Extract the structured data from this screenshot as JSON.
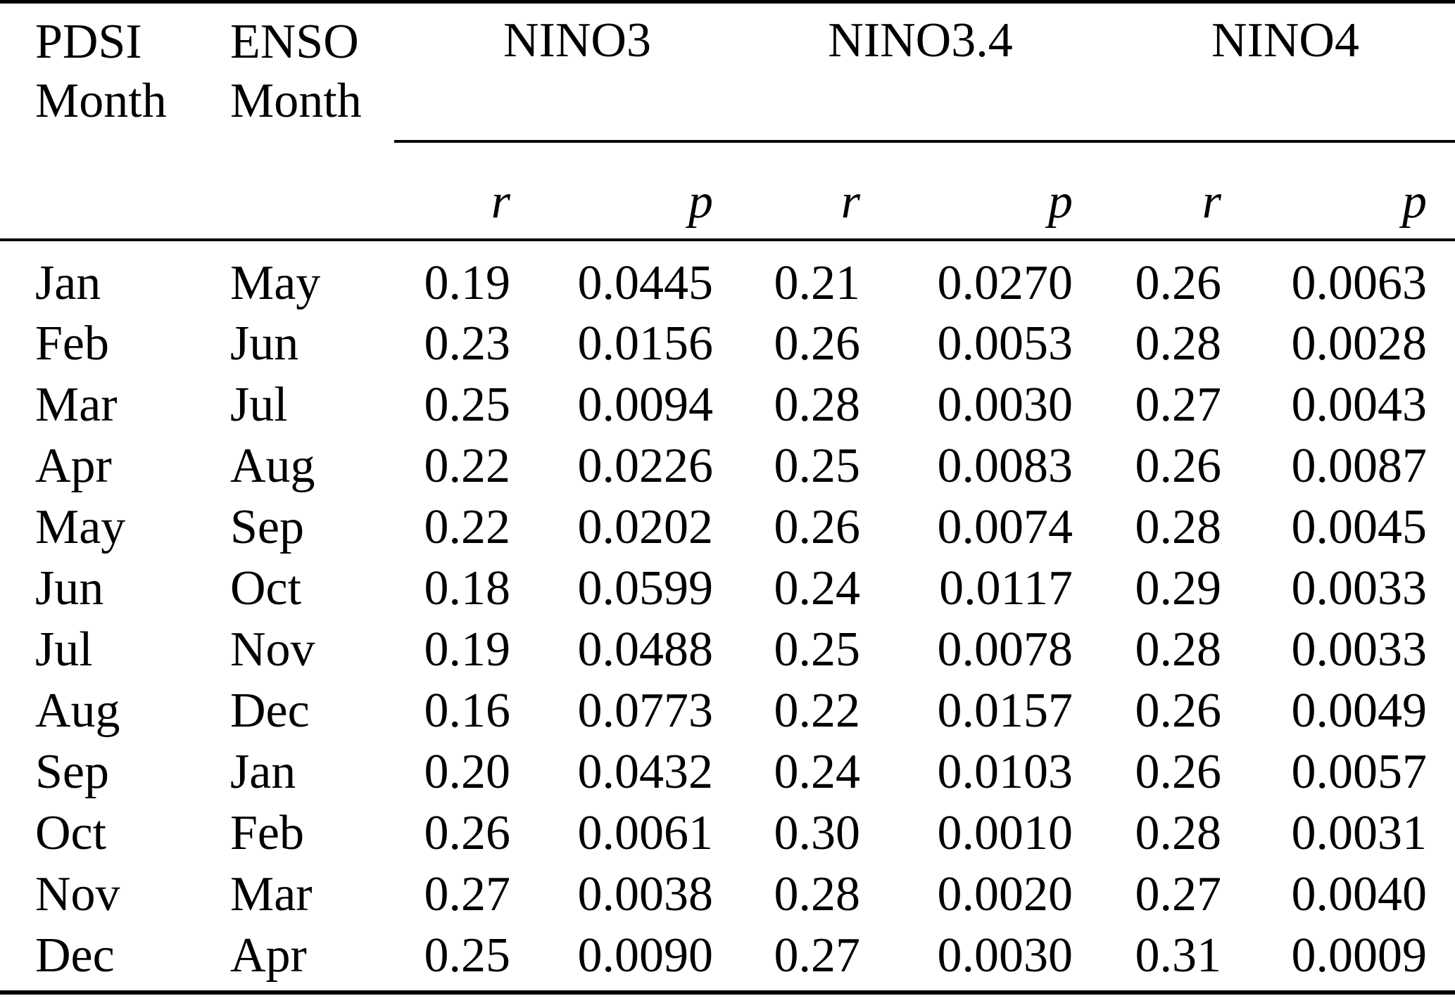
{
  "colors": {
    "background": "#ffffff",
    "text": "#000000",
    "rule": "#000000"
  },
  "table": {
    "column_headers": {
      "pdsi_month": "PDSI\nMonth",
      "enso_month": "ENSO\nMonth"
    },
    "groups": [
      {
        "name": "NINO3",
        "r_label": "r",
        "p_label": "p"
      },
      {
        "name": "NINO3.4",
        "r_label": "r",
        "p_label": "p"
      },
      {
        "name": "NINO4",
        "r_label": "r",
        "p_label": "p"
      }
    ],
    "rows": [
      {
        "pdsi": "Jan",
        "enso": "May",
        "nino3_r": "0.19",
        "nino3_p": "0.0445",
        "nino34_r": "0.21",
        "nino34_p": "0.0270",
        "nino4_r": "0.26",
        "nino4_p": "0.0063"
      },
      {
        "pdsi": "Feb",
        "enso": "Jun",
        "nino3_r": "0.23",
        "nino3_p": "0.0156",
        "nino34_r": "0.26",
        "nino34_p": "0.0053",
        "nino4_r": "0.28",
        "nino4_p": "0.0028"
      },
      {
        "pdsi": "Mar",
        "enso": "Jul",
        "nino3_r": "0.25",
        "nino3_p": "0.0094",
        "nino34_r": "0.28",
        "nino34_p": "0.0030",
        "nino4_r": "0.27",
        "nino4_p": "0.0043"
      },
      {
        "pdsi": "Apr",
        "enso": "Aug",
        "nino3_r": "0.22",
        "nino3_p": "0.0226",
        "nino34_r": "0.25",
        "nino34_p": "0.0083",
        "nino4_r": "0.26",
        "nino4_p": "0.0087"
      },
      {
        "pdsi": "May",
        "enso": "Sep",
        "nino3_r": "0.22",
        "nino3_p": "0.0202",
        "nino34_r": "0.26",
        "nino34_p": "0.0074",
        "nino4_r": "0.28",
        "nino4_p": "0.0045"
      },
      {
        "pdsi": "Jun",
        "enso": "Oct",
        "nino3_r": "0.18",
        "nino3_p": "0.0599",
        "nino34_r": "0.24",
        "nino34_p": "0.0117",
        "nino4_r": "0.29",
        "nino4_p": "0.0033"
      },
      {
        "pdsi": "Jul",
        "enso": "Nov",
        "nino3_r": "0.19",
        "nino3_p": "0.0488",
        "nino34_r": "0.25",
        "nino34_p": "0.0078",
        "nino4_r": "0.28",
        "nino4_p": "0.0033"
      },
      {
        "pdsi": "Aug",
        "enso": "Dec",
        "nino3_r": "0.16",
        "nino3_p": "0.0773",
        "nino34_r": "0.22",
        "nino34_p": "0.0157",
        "nino4_r": "0.26",
        "nino4_p": "0.0049"
      },
      {
        "pdsi": "Sep",
        "enso": "Jan",
        "nino3_r": "0.20",
        "nino3_p": "0.0432",
        "nino34_r": "0.24",
        "nino34_p": "0.0103",
        "nino4_r": "0.26",
        "nino4_p": "0.0057"
      },
      {
        "pdsi": "Oct",
        "enso": "Feb",
        "nino3_r": "0.26",
        "nino3_p": "0.0061",
        "nino34_r": "0.30",
        "nino34_p": "0.0010",
        "nino4_r": "0.28",
        "nino4_p": "0.0031"
      },
      {
        "pdsi": "Nov",
        "enso": "Mar",
        "nino3_r": "0.27",
        "nino3_p": "0.0038",
        "nino34_r": "0.28",
        "nino34_p": "0.0020",
        "nino4_r": "0.27",
        "nino4_p": "0.0040"
      },
      {
        "pdsi": "Dec",
        "enso": "Apr",
        "nino3_r": "0.25",
        "nino3_p": "0.0090",
        "nino34_r": "0.27",
        "nino34_p": "0.0030",
        "nino4_r": "0.31",
        "nino4_p": "0.0009"
      }
    ]
  },
  "chart_data": {
    "type": "table",
    "columns": [
      "PDSI Month",
      "ENSO Month",
      "NINO3 r",
      "NINO3 p",
      "NINO3.4 r",
      "NINO3.4 p",
      "NINO4 r",
      "NINO4 p"
    ],
    "rows": [
      [
        "Jan",
        "May",
        "0.19",
        "0.0445",
        "0.21",
        "0.0270",
        "0.26",
        "0.0063"
      ],
      [
        "Feb",
        "Jun",
        "0.23",
        "0.0156",
        "0.26",
        "0.0053",
        "0.28",
        "0.0028"
      ],
      [
        "Mar",
        "Jul",
        "0.25",
        "0.0094",
        "0.28",
        "0.0030",
        "0.27",
        "0.0043"
      ],
      [
        "Apr",
        "Aug",
        "0.22",
        "0.0226",
        "0.25",
        "0.0083",
        "0.26",
        "0.0087"
      ],
      [
        "May",
        "Sep",
        "0.22",
        "0.0202",
        "0.26",
        "0.0074",
        "0.28",
        "0.0045"
      ],
      [
        "Jun",
        "Oct",
        "0.18",
        "0.0599",
        "0.24",
        "0.0117",
        "0.29",
        "0.0033"
      ],
      [
        "Jul",
        "Nov",
        "0.19",
        "0.0488",
        "0.25",
        "0.0078",
        "0.28",
        "0.0033"
      ],
      [
        "Aug",
        "Dec",
        "0.16",
        "0.0773",
        "0.22",
        "0.0157",
        "0.26",
        "0.0049"
      ],
      [
        "Sep",
        "Jan",
        "0.20",
        "0.0432",
        "0.24",
        "0.0103",
        "0.26",
        "0.0057"
      ],
      [
        "Oct",
        "Feb",
        "0.26",
        "0.0061",
        "0.30",
        "0.0010",
        "0.28",
        "0.0031"
      ],
      [
        "Nov",
        "Mar",
        "0.27",
        "0.0038",
        "0.28",
        "0.0020",
        "0.27",
        "0.0040"
      ],
      [
        "Dec",
        "Apr",
        "0.25",
        "0.0090",
        "0.27",
        "0.0030",
        "0.31",
        "0.0009"
      ]
    ]
  }
}
